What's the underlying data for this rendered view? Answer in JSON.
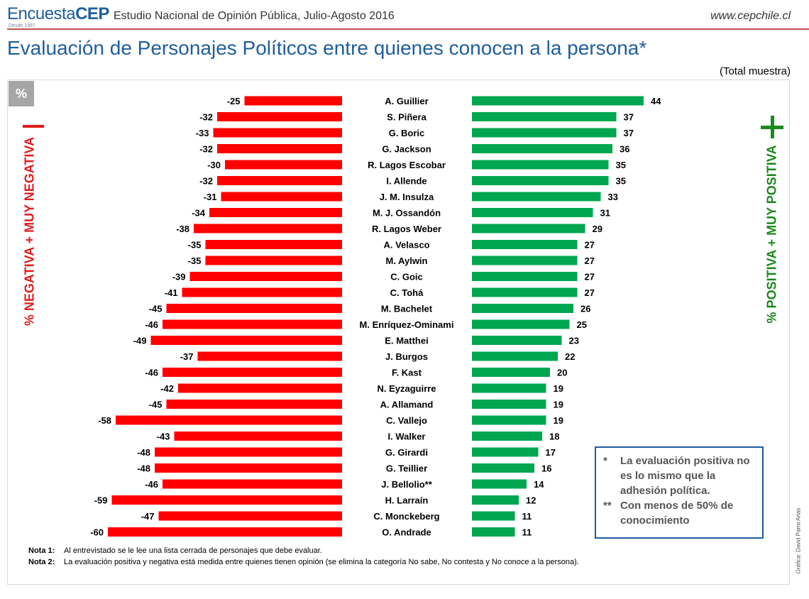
{
  "header": {
    "brand_prefix": "Encuesta",
    "brand_suffix": "CEP",
    "brand_since": "Desde 1987",
    "survey_name": "Estudio Nacional de Opinión Pública, Julio-Agosto 2016",
    "site_url": "www.cepchile.cl",
    "title": "Evaluación de Personajes Políticos entre quienes conocen a la persona*",
    "sample_note": "(Total muestra)"
  },
  "colors": {
    "negative": "#ff0000",
    "positive": "#00a650",
    "title": "#1f5e9e"
  },
  "unit_label": "%",
  "negative_side_label": "% NEGATIVA + MUY NEGATIVA",
  "positive_side_label": "% POSITIVA + MUY POSITIVA",
  "chart_data": {
    "type": "bar",
    "orientation": "horizontal-diverging",
    "categories": [
      "A. Guillier",
      "S. Piñera",
      "G. Boric",
      "G. Jackson",
      "R. Lagos Escobar",
      "I. Allende",
      "J. M. Insulza",
      "M. J. Ossandón",
      "R. Lagos Weber",
      "A. Velasco",
      "M. Aylwin",
      "C. Goic",
      "C. Tohá",
      "M. Bachelet",
      "M. Enríquez-Ominami",
      "E. Matthei",
      "J. Burgos",
      "F. Kast",
      "N. Eyzaguirre",
      "A. Allamand",
      "C. Vallejo",
      "I. Walker",
      "G. Girardi",
      "G. Teillier",
      "J. Bellolio**",
      "H. Larraín",
      "C. Monckeberg",
      "O. Andrade"
    ],
    "series": [
      {
        "name": "% NEGATIVA + MUY NEGATIVA",
        "values": [
          -25,
          -32,
          -33,
          -32,
          -30,
          -32,
          -31,
          -34,
          -38,
          -35,
          -35,
          -39,
          -41,
          -45,
          -46,
          -49,
          -37,
          -46,
          -42,
          -45,
          -58,
          -43,
          -48,
          -48,
          -46,
          -59,
          -47,
          -60
        ]
      },
      {
        "name": "% POSITIVA + MUY POSITIVA",
        "values": [
          44,
          37,
          37,
          36,
          35,
          35,
          33,
          31,
          29,
          27,
          27,
          27,
          27,
          26,
          25,
          23,
          22,
          20,
          19,
          19,
          19,
          18,
          17,
          16,
          14,
          12,
          11,
          11
        ]
      }
    ]
  },
  "side_note": [
    {
      "mark": "*",
      "text": "La evaluación positiva no es lo mismo que la adhesión política."
    },
    {
      "mark": "**",
      "text": "Con menos de 50% de conocimiento"
    }
  ],
  "footnotes": [
    {
      "label": "Nota 1:",
      "text": "Al entrevistado se le lee una lista cerrada de personajes que debe evaluar."
    },
    {
      "label": "Nota 2:",
      "text": "La evaluación positiva y negativa está medida entre quienes tienen opinión (se elimina la categoría No sabe, No contesta y No conoce a la persona)."
    }
  ],
  "credit": "Gráfica: David Parra Arias"
}
